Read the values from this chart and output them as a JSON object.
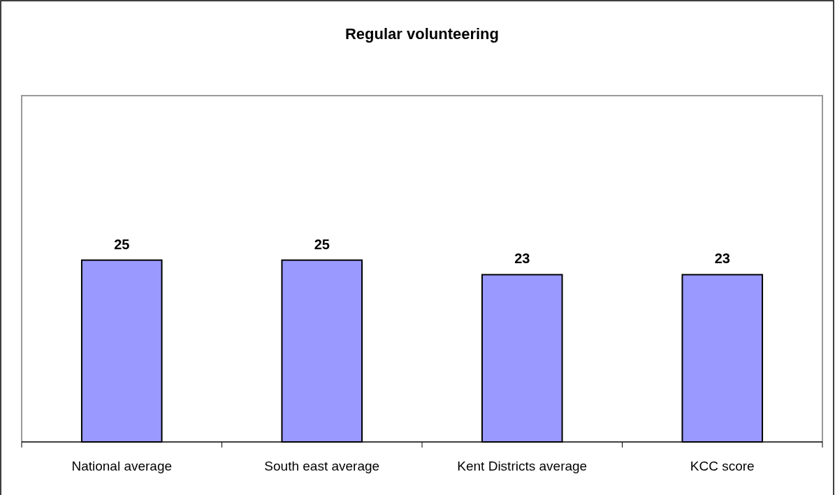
{
  "chart_data": {
    "type": "bar",
    "title": "Regular volunteering",
    "categories": [
      "National average",
      "South east average",
      "Kent Districts average",
      "KCC score"
    ],
    "values": [
      25,
      25,
      23,
      23
    ],
    "color": "#9999ff",
    "data_labels": true
  }
}
